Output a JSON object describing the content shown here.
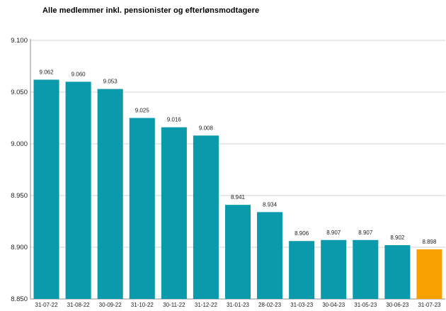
{
  "chart_data": {
    "type": "bar",
    "title": "Alle medlemmer inkl. pensionister og efterlønsmodtagere",
    "xlabel": "",
    "ylabel": "",
    "categories": [
      "31-07-22",
      "31-08-22",
      "30-09-22",
      "31-10-22",
      "30-11-22",
      "31-12-22",
      "31-01-23",
      "28-02-23",
      "31-03-23",
      "30-04-23",
      "31-05-23",
      "30-06-23",
      "31-07-23"
    ],
    "values": [
      9062,
      9060,
      9053,
      9025,
      9016,
      9008,
      8941,
      8934,
      8906,
      8907,
      8907,
      8902,
      8898
    ],
    "value_labels": [
      "9.062",
      "9.060",
      "9.053",
      "9.025",
      "9.016",
      "9.008",
      "8.941",
      "8.934",
      "8.906",
      "8.907",
      "8.907",
      "8.902",
      "8.898"
    ],
    "ylim": [
      8850,
      9100
    ],
    "y_ticks": [
      8850,
      8900,
      8950,
      9000,
      9050,
      9100
    ],
    "y_tick_labels": [
      "8.850",
      "8.900",
      "8.950",
      "9.000",
      "9.050",
      "9.100"
    ],
    "grid": true,
    "legend": "none",
    "colors": {
      "bar": "#0a9aab",
      "highlight_bar": "#f8a000",
      "grid": "#d3d3d3",
      "axis": "#8c8c8c"
    },
    "highlight_index": 12
  }
}
